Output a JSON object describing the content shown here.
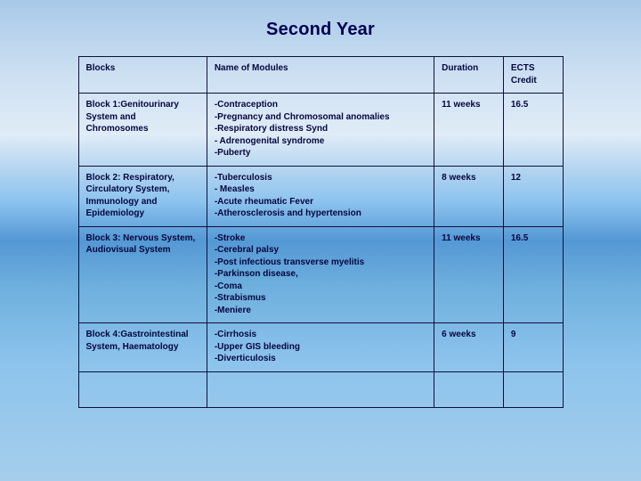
{
  "title": "Second Year",
  "table": {
    "columns": [
      "Blocks",
      "Name of Modules",
      "Duration",
      "ECTS Credit"
    ],
    "rows": [
      {
        "block": "Block 1:Genitourinary System and Chromosomes",
        "modules": "-Contraception\n-Pregnancy and Chromosomal anomalies\n-Respiratory distress Synd\n- Adrenogenital syndrome\n-Puberty",
        "duration": "11 weeks",
        "ects": "16.5"
      },
      {
        "block": "Block 2: Respiratory, Circulatory System, Immunology and Epidemiology",
        "modules": "-Tuberculosis\n- Measles\n-Acute rheumatic Fever\n-Atherosclerosis and hypertension",
        "duration": "8 weeks",
        "ects": "12"
      },
      {
        "block": "Block 3: Nervous System, Audiovisual System",
        "modules": "-Stroke\n-Cerebral palsy\n-Post infectious transverse myelitis\n-Parkinson disease,\n-Coma\n-Strabismus\n-Meniere",
        "duration": "11 weeks",
        "ects": "16.5"
      },
      {
        "block": "Block 4:Gastrointestinal System, Haematology",
        "modules": "-Cirrhosis\n-Upper GIS bleeding\n-Diverticulosis",
        "duration": "6 weeks",
        "ects": "9"
      }
    ]
  },
  "colors": {
    "text": "#06063e",
    "border": "#10103a",
    "bg_top": "#a8c8e8",
    "bg_mid": "#5498d4",
    "bg_bottom": "#a6ceec"
  }
}
